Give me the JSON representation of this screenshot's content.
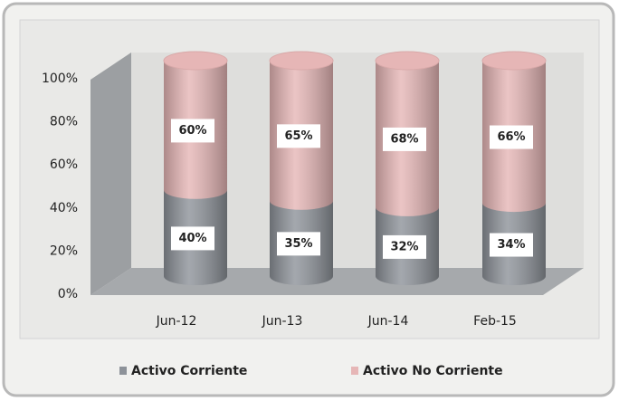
{
  "chart_data": {
    "type": "bar",
    "stacked": true,
    "categories": [
      "Jun-12",
      "Jun-13",
      "Jun-14",
      "Feb-15"
    ],
    "series": [
      {
        "name": "Activo Corriente",
        "color": "#8d9299",
        "values": [
          40,
          35,
          32,
          34
        ],
        "value_labels": [
          "40%",
          "35%",
          "32%",
          "34%"
        ]
      },
      {
        "name": "Activo No Corriente",
        "color": "#e6b6b6",
        "values": [
          60,
          65,
          68,
          66
        ],
        "value_labels": [
          "60%",
          "65%",
          "68%",
          "66%"
        ]
      }
    ],
    "ylim": [
      0,
      100
    ],
    "yticks": [
      {
        "value": 0,
        "label": "0%"
      },
      {
        "value": 20,
        "label": "20%"
      },
      {
        "value": 40,
        "label": "40%"
      },
      {
        "value": 60,
        "label": "60%"
      },
      {
        "value": 80,
        "label": "80%"
      },
      {
        "value": 100,
        "label": "100%"
      }
    ],
    "grid": false,
    "legend": "bottom"
  }
}
